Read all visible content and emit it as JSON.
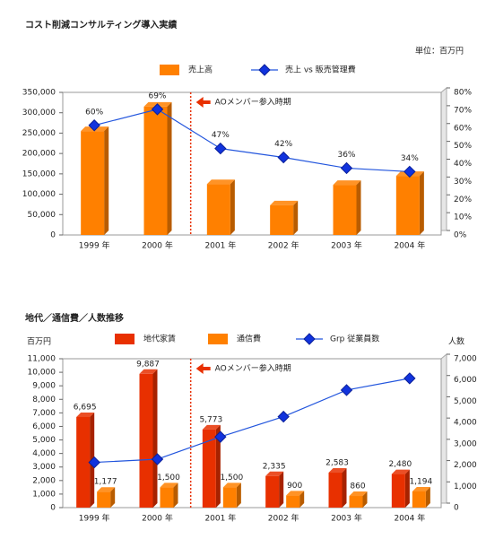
{
  "chart_data": [
    {
      "type": "bar",
      "title": "コスト削減コンサルティング導入実績",
      "unit": "単位：百万円",
      "annotation": "AOメンバー参入時期",
      "categories": [
        "1999 年",
        "2000 年",
        "2001 年",
        "2002 年",
        "2003 年",
        "2004 年"
      ],
      "series": [
        {
          "name": "売上高",
          "color": "#ff8000",
          "values": [
            255000,
            315000,
            125000,
            73000,
            123000,
            145000
          ]
        },
        {
          "name": "売上 vs 販売管理費",
          "type": "line",
          "axis": "y2",
          "color": "#2255dd",
          "values": [
            60,
            69,
            47,
            42,
            36,
            34
          ],
          "value_labels": [
            "60%",
            "69%",
            "47%",
            "42%",
            "36%",
            "34%"
          ]
        }
      ],
      "ylim": [
        0,
        350000
      ],
      "yticks": [
        0,
        {
          "value": 50000,
          "label": "50,000"
        },
        {
          "value": 100000,
          "label": "100,000"
        },
        {
          "value": 150000,
          "label": "150,000"
        },
        {
          "value": 200000,
          "label": "200,000"
        },
        {
          "value": 250000,
          "label": "250,000"
        },
        {
          "value": 300000,
          "label": "300,000"
        },
        {
          "value": 350000,
          "label": "350,000"
        }
      ],
      "y2lim": [
        0,
        80
      ],
      "y2ticks": [
        {
          "value": 0,
          "label": "0%"
        },
        {
          "value": 10,
          "label": "10%"
        },
        {
          "value": 20,
          "label": "20%"
        },
        {
          "value": 30,
          "label": "30%"
        },
        {
          "value": 40,
          "label": "40%"
        },
        {
          "value": 50,
          "label": "50%"
        },
        {
          "value": 60,
          "label": "60%"
        },
        {
          "value": 70,
          "label": "70%"
        },
        {
          "value": 80,
          "label": "80%"
        }
      ]
    },
    {
      "type": "bar",
      "title": "地代／通信費／人数推移",
      "ylabel": "百万円",
      "y2label": "人数",
      "annotation": "AOメンバー参入時期",
      "categories": [
        "1999 年",
        "2000 年",
        "2001 年",
        "2002 年",
        "2003 年",
        "2004 年"
      ],
      "series": [
        {
          "name": "地代家賃",
          "color": "#e83000",
          "values": [
            6695,
            9887,
            5773,
            2335,
            2583,
            2480
          ],
          "value_labels": [
            "6,695",
            "9,887",
            "5,773",
            "2,335",
            "2,583",
            "2,480"
          ]
        },
        {
          "name": "通信費",
          "color": "#ff8000",
          "values": [
            1177,
            1500,
            1500,
            900,
            860,
            1194
          ],
          "value_labels": [
            "1,177",
            "1,500",
            "1,500",
            "900",
            "860",
            "1,194"
          ]
        },
        {
          "name": "Grp 従業員数",
          "type": "line",
          "axis": "y2",
          "color": "#2255dd",
          "values": [
            2000,
            2150,
            3200,
            4150,
            5400,
            5950
          ]
        }
      ],
      "ylim": [
        0,
        11000
      ],
      "yticks": [
        0,
        {
          "value": 1000,
          "label": "1,000"
        },
        {
          "value": 2000,
          "label": "2,000"
        },
        {
          "value": 3000,
          "label": "3,000"
        },
        {
          "value": 4000,
          "label": "4,000"
        },
        {
          "value": 5000,
          "label": "5,000"
        },
        {
          "value": 6000,
          "label": "6,000"
        },
        {
          "value": 7000,
          "label": "7,000"
        },
        {
          "value": 8000,
          "label": "8,000"
        },
        {
          "value": 9000,
          "label": "9,000"
        },
        {
          "value": 10000,
          "label": "10,000"
        },
        {
          "value": 11000,
          "label": "11,000"
        }
      ],
      "y2lim": [
        0,
        7000
      ],
      "y2ticks": [
        0,
        {
          "value": 1000,
          "label": "1,000"
        },
        {
          "value": 2000,
          "label": "2,000"
        },
        {
          "value": 3000,
          "label": "3,000"
        },
        {
          "value": 4000,
          "label": "4,000"
        },
        {
          "value": 5000,
          "label": "5,000"
        },
        {
          "value": 6000,
          "label": "6,000"
        },
        {
          "value": 7000,
          "label": "7,000"
        }
      ]
    }
  ]
}
